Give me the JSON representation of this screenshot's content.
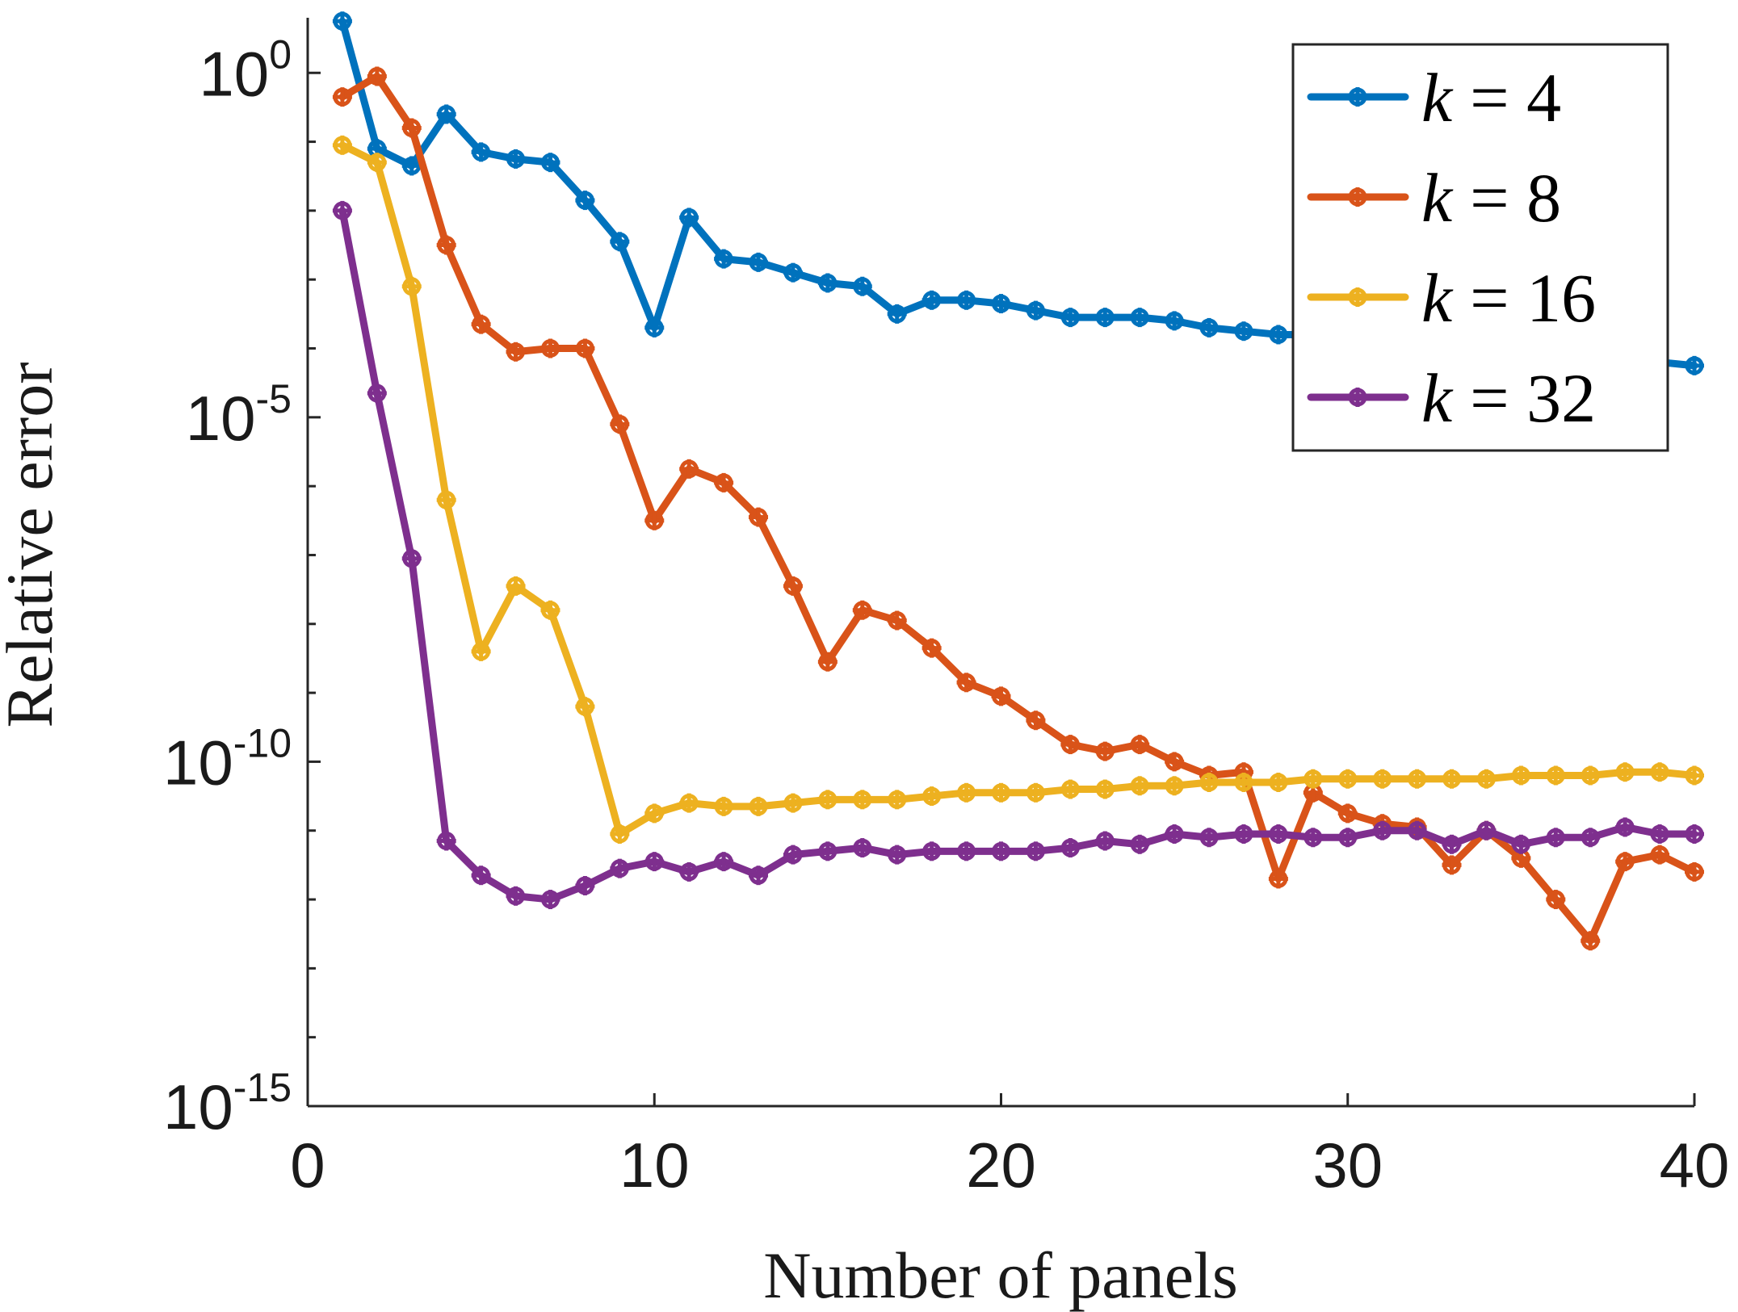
{
  "chart_data": {
    "type": "line",
    "xlabel": "Number of panels",
    "ylabel": "Relative error",
    "xlim": [
      0,
      40
    ],
    "ylim_log10": [
      -15,
      0.8
    ],
    "yscale": "log",
    "grid": false,
    "legend_position": "top-right",
    "x_ticks": [
      {
        "value": 0,
        "label": "0"
      },
      {
        "value": 10,
        "label": "10"
      },
      {
        "value": 20,
        "label": "20"
      },
      {
        "value": 30,
        "label": "30"
      },
      {
        "value": 40,
        "label": "40"
      }
    ],
    "y_ticks": [
      {
        "exp": 0,
        "base": "10",
        "sup": "0"
      },
      {
        "exp": -5,
        "base": "10",
        "sup": "-5"
      },
      {
        "exp": -10,
        "base": "10",
        "sup": "-10"
      },
      {
        "exp": -15,
        "base": "10",
        "sup": "-15"
      }
    ],
    "x": [
      1,
      2,
      3,
      4,
      5,
      6,
      7,
      8,
      9,
      10,
      11,
      12,
      13,
      14,
      15,
      16,
      17,
      18,
      19,
      20,
      21,
      22,
      23,
      24,
      25,
      26,
      27,
      28,
      29,
      30,
      31,
      32,
      33,
      34,
      35,
      36,
      37,
      38,
      39,
      40
    ],
    "series": [
      {
        "name": "k = 4",
        "k_label": "k",
        "eq_label": "= 4",
        "color": "#0072BD",
        "log10_values": [
          0.75,
          -1.1,
          -1.35,
          -0.6,
          -1.15,
          -1.25,
          -1.3,
          -1.85,
          -2.45,
          -3.7,
          -2.1,
          -2.7,
          -2.75,
          -2.9,
          -3.05,
          -3.1,
          -3.5,
          -3.3,
          -3.3,
          -3.35,
          -3.45,
          -3.55,
          -3.55,
          -3.55,
          -3.6,
          -3.7,
          -3.75,
          -3.8,
          -3.8,
          -3.85,
          -3.85,
          -3.9,
          -3.95,
          -3.95,
          -4.0,
          -4.05,
          -4.05,
          -4.1,
          -4.2,
          -4.25
        ]
      },
      {
        "name": "k = 8",
        "k_label": "k",
        "eq_label": "= 8",
        "color": "#D95319",
        "log10_values": [
          -0.35,
          -0.05,
          -0.8,
          -2.5,
          -3.65,
          -4.05,
          -4.0,
          -4.0,
          -5.1,
          -6.5,
          -5.75,
          -5.95,
          -6.45,
          -7.45,
          -8.55,
          -7.8,
          -7.95,
          -8.35,
          -8.85,
          -9.05,
          -9.4,
          -9.75,
          -9.85,
          -9.75,
          -10.0,
          -10.2,
          -10.15,
          -11.7,
          -10.45,
          -10.75,
          -10.9,
          -10.95,
          -11.5,
          -11.0,
          -11.4,
          -12.0,
          -12.6,
          -11.45,
          -11.35,
          -11.6
        ]
      },
      {
        "name": "k = 16",
        "k_label": "k",
        "eq_label": "= 16",
        "color": "#EDB120",
        "log10_values": [
          -1.05,
          -1.3,
          -3.1,
          -6.2,
          -8.4,
          -7.45,
          -7.8,
          -9.2,
          -11.05,
          -10.75,
          -10.6,
          -10.65,
          -10.65,
          -10.6,
          -10.55,
          -10.55,
          -10.55,
          -10.5,
          -10.45,
          -10.45,
          -10.45,
          -10.4,
          -10.4,
          -10.35,
          -10.35,
          -10.3,
          -10.3,
          -10.3,
          -10.25,
          -10.25,
          -10.25,
          -10.25,
          -10.25,
          -10.25,
          -10.2,
          -10.2,
          -10.2,
          -10.15,
          -10.15,
          -10.2
        ]
      },
      {
        "name": "k = 32",
        "k_label": "k",
        "eq_label": "= 32",
        "color": "#7E2F8E",
        "log10_values": [
          -2.0,
          -4.65,
          -7.05,
          -11.15,
          -11.65,
          -11.95,
          -12.0,
          -11.8,
          -11.55,
          -11.45,
          -11.6,
          -11.45,
          -11.65,
          -11.35,
          -11.3,
          -11.25,
          -11.35,
          -11.3,
          -11.3,
          -11.3,
          -11.3,
          -11.25,
          -11.15,
          -11.2,
          -11.05,
          -11.1,
          -11.05,
          -11.05,
          -11.1,
          -11.1,
          -11.0,
          -11.0,
          -11.2,
          -11.0,
          -11.2,
          -11.1,
          -11.1,
          -10.95,
          -11.05,
          -11.05
        ]
      }
    ]
  }
}
